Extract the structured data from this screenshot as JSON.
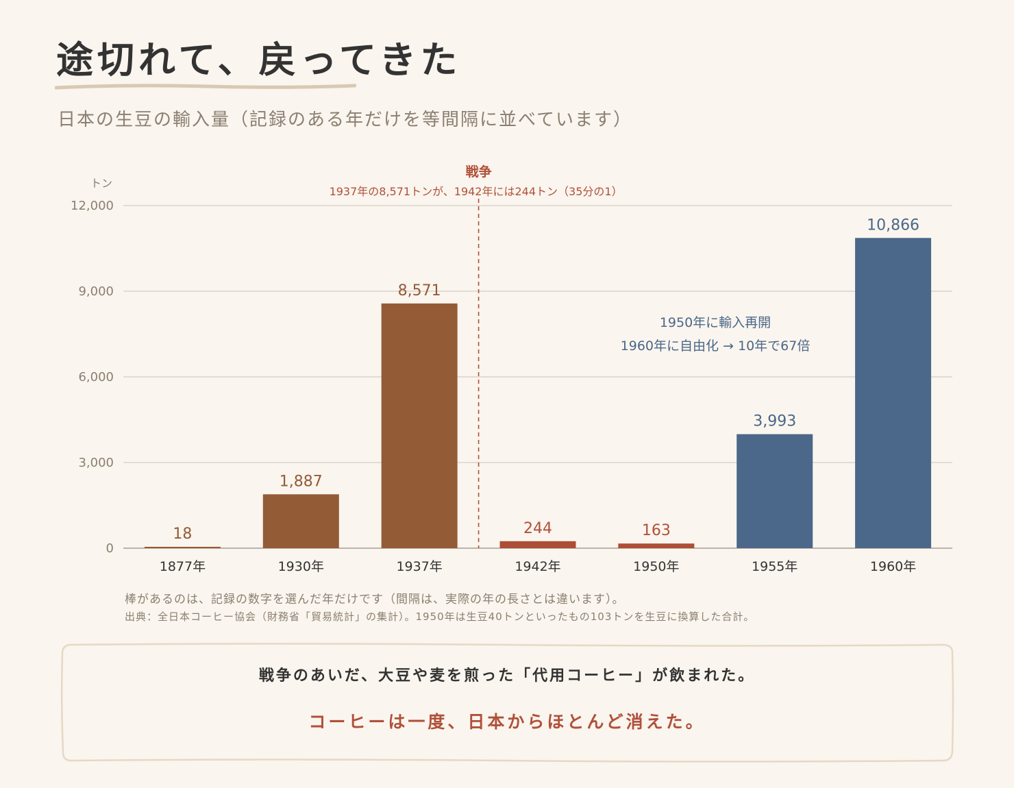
{
  "page": {
    "title": "途切れて、戻ってきた",
    "subtitle": "日本の生豆の輸入量（記録のある年だけを等間隔に並べています）",
    "note_1": "棒があるのは、記録の数字を選んだ年だけです（間隔は、実際の年の長さとは違います）。",
    "note_2": "出典：全日本コーヒー協会（財務省「貿易統計」の集計）。1950年は生豆40トンといったもの103トンを生豆に換算した合計。",
    "callout_line_1": "戦争のあいだ、大豆や麦を煎った「代用コーヒー」が飲まれた。",
    "callout_line_2": "コーヒーは一度、日本からほとんど消えた。"
  },
  "colors": {
    "background": "#faf5ee",
    "prewar_bar": "#945b37",
    "war_bar": "#ad4e36",
    "postwar_bar": "#4b6789",
    "war_text": "#b0503a",
    "postwar_text": "#4b6789",
    "axis_text": "#8a7f72",
    "gridline": "#d9d3ca"
  },
  "chart_data": {
    "type": "bar",
    "unit_label": "トン",
    "categories": [
      "1877年",
      "1930年",
      "1937年",
      "1942年",
      "1950年",
      "1955年",
      "1960年"
    ],
    "values": [
      18,
      1887,
      8571,
      244,
      163,
      3993,
      10866
    ],
    "value_labels": [
      "18",
      "1,887",
      "8,571",
      "244",
      "163",
      "3,993",
      "10,866"
    ],
    "bar_groups": [
      "prewar",
      "prewar",
      "prewar",
      "war",
      "war",
      "postwar",
      "postwar"
    ],
    "ylim": [
      0,
      12000
    ],
    "yticks": [
      0,
      3000,
      6000,
      9000,
      12000
    ],
    "ytick_labels": [
      "0",
      "3,000",
      "6,000",
      "9,000",
      "12,000"
    ],
    "grid": true,
    "annotations": {
      "war_title": "戦争",
      "war_text": "1937年の8,571トンが、1942年には244トン（35分の1）",
      "postwar_line_1": "1950年に輸入再開",
      "postwar_line_2": "1960年に自由化 → 10年で67倍"
    }
  }
}
